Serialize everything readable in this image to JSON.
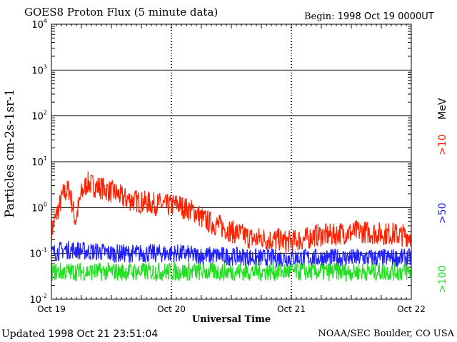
{
  "header": {
    "title": "GOES8 Proton Flux (5 minute data)",
    "begin_label": "Begin:",
    "begin_value": "1998 Oct 19 0000UT"
  },
  "footer": {
    "updated_label": "Updated",
    "updated_value": "1998 Oct 21 23:51:04",
    "credit": "NOAA/SEC Boulder, CO USA"
  },
  "right_labels": [
    {
      "text": ">10",
      "color": "#ff2000"
    },
    {
      "text": "MeV",
      "color": "#000000"
    },
    {
      "text": ">50",
      "color": "#2020ff"
    },
    {
      "text": ">100",
      "color": "#20e020"
    }
  ],
  "chart_data": {
    "type": "line",
    "title": "GOES8 Proton Flux (5 minute data)",
    "xlabel": "Universal Time",
    "ylabel": "Particles cm-2s-1sr-1",
    "yscale": "log",
    "ylim": [
      0.01,
      10000
    ],
    "y_ticks": [
      {
        "base": "10",
        "exp": "-2"
      },
      {
        "base": "10",
        "exp": "-1"
      },
      {
        "base": "10",
        "exp": "0"
      },
      {
        "base": "10",
        "exp": "1"
      },
      {
        "base": "10",
        "exp": "2"
      },
      {
        "base": "10",
        "exp": "3"
      },
      {
        "base": "10",
        "exp": "4"
      }
    ],
    "x_ticks": [
      "Oct 19",
      "Oct 20",
      "Oct 21",
      "Oct 22"
    ],
    "xlim_days": [
      0,
      3
    ],
    "grid": true,
    "series": [
      {
        "name": ">10 MeV",
        "color": "#ff2000",
        "x": [
          0.0,
          0.05,
          0.1,
          0.15,
          0.2,
          0.25,
          0.3,
          0.35,
          0.4,
          0.45,
          0.5,
          0.55,
          0.6,
          0.65,
          0.7,
          0.75,
          0.8,
          0.85,
          0.9,
          0.95,
          1.0,
          1.05,
          1.1,
          1.15,
          1.2,
          1.25,
          1.3,
          1.35,
          1.4,
          1.45,
          1.5,
          1.55,
          1.6,
          1.65,
          1.7,
          1.75,
          1.8,
          1.85,
          1.9,
          1.95,
          2.0,
          2.05,
          2.1,
          2.15,
          2.2,
          2.25,
          2.3,
          2.35,
          2.4,
          2.45,
          2.5,
          2.55,
          2.6,
          2.65,
          2.7,
          2.75,
          2.8,
          2.85,
          2.9,
          2.95,
          3.0
        ],
        "values": [
          0.3,
          0.8,
          2.0,
          2.5,
          0.5,
          2.0,
          3.5,
          3.0,
          2.8,
          2.5,
          2.2,
          2.0,
          1.6,
          1.5,
          1.4,
          1.3,
          1.3,
          1.2,
          1.2,
          1.1,
          1.1,
          1.2,
          1.0,
          0.9,
          0.8,
          0.6,
          0.5,
          0.45,
          0.4,
          0.35,
          0.3,
          0.28,
          0.25,
          0.22,
          0.2,
          0.22,
          0.2,
          0.2,
          0.2,
          0.18,
          0.18,
          0.2,
          0.2,
          0.22,
          0.25,
          0.25,
          0.25,
          0.25,
          0.28,
          0.28,
          0.28,
          0.3,
          0.3,
          0.28,
          0.28,
          0.27,
          0.27,
          0.27,
          0.25,
          0.25,
          0.25
        ]
      },
      {
        "name": ">50 MeV",
        "color": "#2020ff",
        "x": [
          0.0,
          0.1,
          0.2,
          0.3,
          0.4,
          0.5,
          0.6,
          0.7,
          0.8,
          0.9,
          1.0,
          1.1,
          1.2,
          1.3,
          1.4,
          1.5,
          1.6,
          1.7,
          1.8,
          1.9,
          2.0,
          2.1,
          2.2,
          2.3,
          2.4,
          2.5,
          2.6,
          2.7,
          2.8,
          2.9,
          3.0
        ],
        "values": [
          0.1,
          0.12,
          0.12,
          0.11,
          0.11,
          0.1,
          0.1,
          0.1,
          0.1,
          0.1,
          0.1,
          0.1,
          0.09,
          0.09,
          0.09,
          0.085,
          0.085,
          0.08,
          0.08,
          0.08,
          0.08,
          0.08,
          0.08,
          0.08,
          0.08,
          0.08,
          0.08,
          0.08,
          0.08,
          0.08,
          0.08
        ]
      },
      {
        "name": ">100 MeV",
        "color": "#20e020",
        "x": [
          0.0,
          0.1,
          0.2,
          0.3,
          0.4,
          0.5,
          0.6,
          0.7,
          0.8,
          0.9,
          1.0,
          1.1,
          1.2,
          1.3,
          1.4,
          1.5,
          1.6,
          1.7,
          1.8,
          1.9,
          2.0,
          2.1,
          2.2,
          2.3,
          2.4,
          2.5,
          2.6,
          2.7,
          2.8,
          2.9,
          3.0
        ],
        "values": [
          0.04,
          0.04,
          0.04,
          0.04,
          0.04,
          0.04,
          0.04,
          0.04,
          0.04,
          0.04,
          0.04,
          0.04,
          0.04,
          0.04,
          0.04,
          0.04,
          0.04,
          0.04,
          0.04,
          0.04,
          0.04,
          0.04,
          0.04,
          0.04,
          0.04,
          0.04,
          0.04,
          0.04,
          0.04,
          0.04,
          0.04
        ]
      }
    ]
  }
}
